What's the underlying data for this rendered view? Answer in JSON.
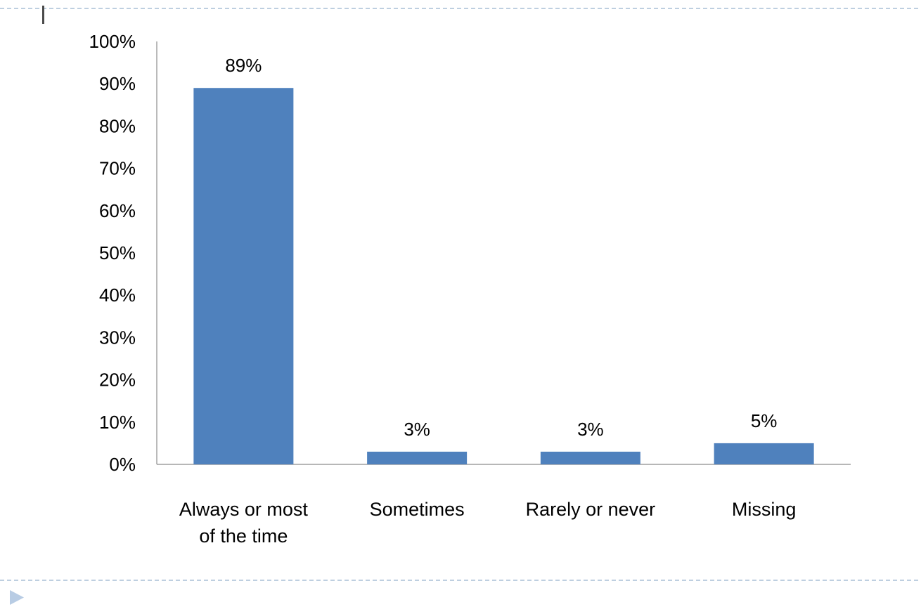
{
  "chart_data": {
    "type": "bar",
    "categories": [
      "Always or most of the time",
      "Sometimes",
      "Rarely or never",
      "Missing"
    ],
    "category_lines": [
      [
        "Always or most",
        "of the time"
      ],
      [
        "Sometimes"
      ],
      [
        "Rarely or never"
      ],
      [
        "Missing"
      ]
    ],
    "values": [
      89,
      3,
      3,
      5
    ],
    "data_labels": [
      "89%",
      "3%",
      "3%",
      "5%"
    ],
    "title": "",
    "xlabel": "",
    "ylabel": "",
    "ylim": [
      0,
      100
    ],
    "y_tick_step": 10,
    "y_tick_format": "percent",
    "grid": false,
    "legend": "none"
  },
  "colors": {
    "bar": "#4F81BD",
    "axis": "#8c8c8c",
    "slide_border": "#a8bfd6",
    "marker": "#b8cce4",
    "text": "#000000"
  },
  "decorations": {
    "bullet_marker_icon": "triangle-right-icon",
    "top_border": "dashed",
    "bottom_border": "dashed"
  }
}
